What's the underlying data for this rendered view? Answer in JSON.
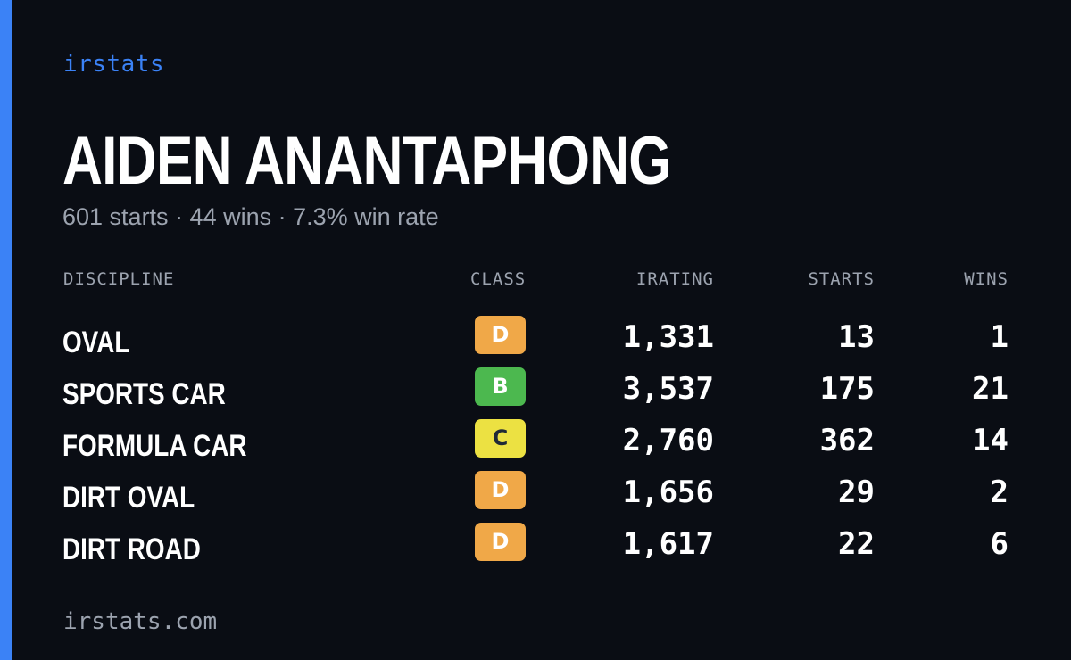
{
  "brand": "irstats",
  "driver": {
    "name": "AIDEN ANANTAPHONG",
    "summary": "601 starts · 44 wins · 7.3% win rate"
  },
  "table": {
    "headers": {
      "discipline": "DISCIPLINE",
      "class": "CLASS",
      "irating": "IRATING",
      "starts": "STARTS",
      "wins": "WINS"
    },
    "rows": [
      {
        "discipline": "OVAL",
        "class": "D",
        "class_color": "#f0a848",
        "class_text_color": "#ffffff",
        "irating": "1,331",
        "starts": "13",
        "wins": "1"
      },
      {
        "discipline": "SPORTS CAR",
        "class": "B",
        "class_color": "#4cb84f",
        "class_text_color": "#ffffff",
        "irating": "3,537",
        "starts": "175",
        "wins": "21"
      },
      {
        "discipline": "FORMULA CAR",
        "class": "C",
        "class_color": "#ece142",
        "class_text_color": "#1f2937",
        "irating": "2,760",
        "starts": "362",
        "wins": "14"
      },
      {
        "discipline": "DIRT OVAL",
        "class": "D",
        "class_color": "#f0a848",
        "class_text_color": "#ffffff",
        "irating": "1,656",
        "starts": "29",
        "wins": "2"
      },
      {
        "discipline": "DIRT ROAD",
        "class": "D",
        "class_color": "#f0a848",
        "class_text_color": "#ffffff",
        "irating": "1,617",
        "starts": "22",
        "wins": "6"
      }
    ]
  },
  "footer": "irstats.com",
  "colors": {
    "background": "#0a0d14",
    "accent": "#3b82f6",
    "muted_text": "#9ca3af"
  }
}
